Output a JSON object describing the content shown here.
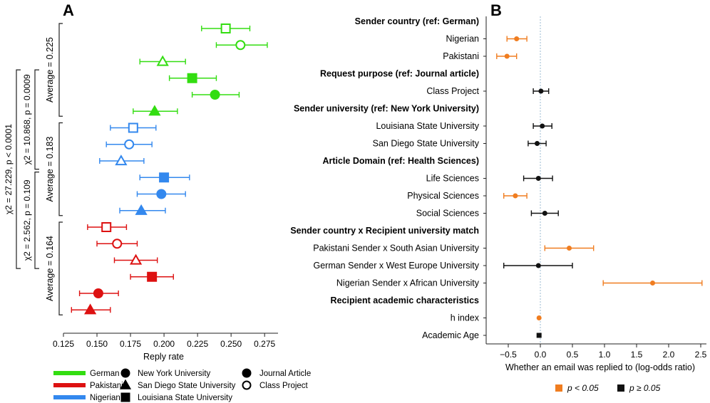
{
  "colors": {
    "German": "#33dd11",
    "Pakistani": "#dd1111",
    "Nigerian": "#3388ee",
    "sig": "#f07d20",
    "nonsig": "#111111"
  },
  "chart_data": [
    {
      "panel": "A",
      "type": "scatter",
      "subtype": "dot-plot with error bars",
      "xlabel": "Reply rate",
      "xlim": [
        0.125,
        0.285
      ],
      "xticks": [
        0.125,
        0.15,
        0.175,
        0.2,
        0.225,
        0.25,
        0.275
      ],
      "xtick_labels": [
        "0.125",
        "0.150",
        "0.175",
        "0.200",
        "0.225",
        "0.250",
        "0.275"
      ],
      "points": [
        {
          "country": "German",
          "university": "Louisiana State University",
          "purpose": "Class Project",
          "rate": 0.246,
          "low": 0.228,
          "high": 0.264
        },
        {
          "country": "German",
          "university": "New York University",
          "purpose": "Class Project",
          "rate": 0.257,
          "low": 0.239,
          "high": 0.277
        },
        {
          "country": "German",
          "university": "San Diego State University",
          "purpose": "Class Project",
          "rate": 0.199,
          "low": 0.182,
          "high": 0.216
        },
        {
          "country": "German",
          "university": "Louisiana State University",
          "purpose": "Journal Article",
          "rate": 0.221,
          "low": 0.204,
          "high": 0.239
        },
        {
          "country": "German",
          "university": "New York University",
          "purpose": "Journal Article",
          "rate": 0.238,
          "low": 0.221,
          "high": 0.256
        },
        {
          "country": "German",
          "university": "San Diego State University",
          "purpose": "Journal Article",
          "rate": 0.193,
          "low": 0.177,
          "high": 0.21
        },
        {
          "country": "Nigerian",
          "university": "Louisiana State University",
          "purpose": "Class Project",
          "rate": 0.177,
          "low": 0.16,
          "high": 0.194
        },
        {
          "country": "Nigerian",
          "university": "New York University",
          "purpose": "Class Project",
          "rate": 0.174,
          "low": 0.157,
          "high": 0.191
        },
        {
          "country": "Nigerian",
          "university": "San Diego State University",
          "purpose": "Class Project",
          "rate": 0.168,
          "low": 0.152,
          "high": 0.185
        },
        {
          "country": "Nigerian",
          "university": "Louisiana State University",
          "purpose": "Journal Article",
          "rate": 0.2,
          "low": 0.182,
          "high": 0.219
        },
        {
          "country": "Nigerian",
          "university": "New York University",
          "purpose": "Journal Article",
          "rate": 0.198,
          "low": 0.18,
          "high": 0.216
        },
        {
          "country": "Nigerian",
          "university": "San Diego State University",
          "purpose": "Journal Article",
          "rate": 0.183,
          "low": 0.167,
          "high": 0.201
        },
        {
          "country": "Pakistani",
          "university": "Louisiana State University",
          "purpose": "Class Project",
          "rate": 0.157,
          "low": 0.143,
          "high": 0.172
        },
        {
          "country": "Pakistani",
          "university": "New York University",
          "purpose": "Class Project",
          "rate": 0.165,
          "low": 0.15,
          "high": 0.18
        },
        {
          "country": "Pakistani",
          "university": "San Diego State University",
          "purpose": "Class Project",
          "rate": 0.179,
          "low": 0.163,
          "high": 0.195
        },
        {
          "country": "Pakistani",
          "university": "Louisiana State University",
          "purpose": "Journal Article",
          "rate": 0.191,
          "low": 0.175,
          "high": 0.207
        },
        {
          "country": "Pakistani",
          "university": "New York University",
          "purpose": "Journal Article",
          "rate": 0.151,
          "low": 0.137,
          "high": 0.166
        },
        {
          "country": "Pakistani",
          "university": "San Diego State University",
          "purpose": "Journal Article",
          "rate": 0.145,
          "low": 0.131,
          "high": 0.16
        }
      ],
      "group_averages": [
        {
          "country": "German",
          "label": "Average = 0.225"
        },
        {
          "country": "Nigerian",
          "label": "Average = 0.183"
        },
        {
          "country": "Pakistani",
          "label": "Average = 0.164"
        }
      ],
      "tests": [
        {
          "label": "χ2 = 27.229, p < 0.0001",
          "between": [
            "German",
            "Pakistani"
          ]
        },
        {
          "label": "χ2 = 10.868, p = 0.0009",
          "between": [
            "German",
            "Nigerian"
          ]
        },
        {
          "label": "χ2 = 2.562, p = 0.109",
          "between": [
            "Nigerian",
            "Pakistani"
          ]
        }
      ],
      "legend": {
        "countries": [
          "German",
          "Pakistani",
          "Nigerian"
        ],
        "universities": [
          {
            "label": "New York University",
            "shape": "circle"
          },
          {
            "label": "San Diego State University",
            "shape": "triangle"
          },
          {
            "label": "Louisiana State University",
            "shape": "square"
          }
        ],
        "purposes": [
          {
            "label": "Journal Article",
            "fill": "filled"
          },
          {
            "label": "Class Project",
            "fill": "open"
          }
        ]
      }
    },
    {
      "panel": "B",
      "type": "scatter",
      "subtype": "coefficient plot",
      "xlabel": "Whether an email was replied to (log-odds ratio)",
      "xlim": [
        -0.8,
        2.6
      ],
      "xticks": [
        -0.5,
        0.0,
        0.5,
        1.0,
        1.5,
        2.0,
        2.5
      ],
      "xtick_labels": [
        "−0.5",
        "0.0",
        "0.5",
        "1.0",
        "1.5",
        "2.0",
        "2.5"
      ],
      "rows": [
        {
          "kind": "header",
          "label": "Sender country (ref: German)"
        },
        {
          "kind": "coef",
          "label": "Nigerian",
          "est": -0.37,
          "low": -0.52,
          "high": -0.21,
          "sig": true
        },
        {
          "kind": "coef",
          "label": "Pakistani",
          "est": -0.52,
          "low": -0.68,
          "high": -0.37,
          "sig": true
        },
        {
          "kind": "header",
          "label": "Request purpose (ref: Journal article)"
        },
        {
          "kind": "coef",
          "label": "Class Project",
          "est": 0.01,
          "low": -0.11,
          "high": 0.13,
          "sig": false
        },
        {
          "kind": "header",
          "label": "Sender university (ref: New York University)"
        },
        {
          "kind": "coef",
          "label": "Louisiana State University",
          "est": 0.03,
          "low": -0.11,
          "high": 0.18,
          "sig": false
        },
        {
          "kind": "coef",
          "label": "San Diego State University",
          "est": -0.05,
          "low": -0.19,
          "high": 0.09,
          "sig": false
        },
        {
          "kind": "header",
          "label": "Article Domain (ref: Health Sciences)"
        },
        {
          "kind": "coef",
          "label": "Life Sciences",
          "est": -0.03,
          "low": -0.26,
          "high": 0.19,
          "sig": false
        },
        {
          "kind": "coef",
          "label": "Physical Sciences",
          "est": -0.39,
          "low": -0.57,
          "high": -0.21,
          "sig": true
        },
        {
          "kind": "coef",
          "label": "Social Sciences",
          "est": 0.07,
          "low": -0.14,
          "high": 0.28,
          "sig": false
        },
        {
          "kind": "header",
          "label": "Sender country x Recipient university match"
        },
        {
          "kind": "coef",
          "label": "Pakistani Sender x South Asian University",
          "est": 0.45,
          "low": 0.07,
          "high": 0.83,
          "sig": true
        },
        {
          "kind": "coef",
          "label": "German Sender x West Europe University",
          "est": -0.03,
          "low": -0.57,
          "high": 0.5,
          "sig": false
        },
        {
          "kind": "coef",
          "label": "Nigerian Sender x African University",
          "est": 1.75,
          "low": 0.98,
          "high": 2.52,
          "sig": true
        },
        {
          "kind": "header",
          "label": "Recipient academic characteristics"
        },
        {
          "kind": "coef",
          "label": "h index",
          "est": -0.02,
          "low": -0.02,
          "high": -0.02,
          "sig": true
        },
        {
          "kind": "coef",
          "label": "Academic Age",
          "est": -0.02,
          "low": -0.02,
          "high": -0.02,
          "sig": false,
          "shape": "square"
        }
      ],
      "legend": [
        {
          "label": "p < 0.05",
          "sig": true
        },
        {
          "label": "p ≥ 0.05",
          "sig": false
        }
      ]
    }
  ],
  "panel_labels": {
    "a": "A",
    "b": "B"
  }
}
